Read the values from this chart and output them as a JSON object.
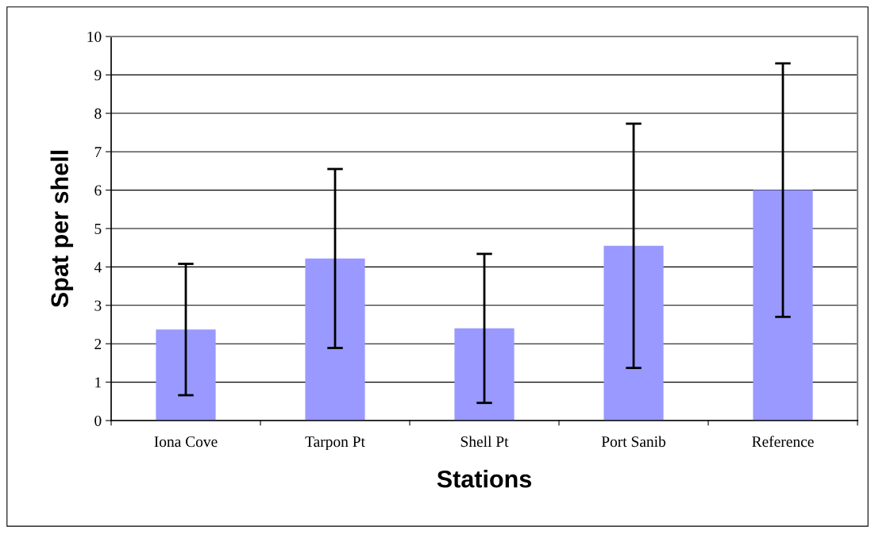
{
  "chart_data": {
    "type": "bar",
    "xlabel": "Stations",
    "ylabel": "Spat per shell",
    "categories": [
      "Iona Cove",
      "Tarpon Pt",
      "Shell Pt",
      "Port Sanib",
      "Reference"
    ],
    "values": [
      2.37,
      4.22,
      2.4,
      4.55,
      6.0
    ],
    "errors": [
      1.71,
      2.33,
      1.94,
      3.18,
      3.3
    ],
    "color": "#9999ff",
    "ylim": [
      0,
      10
    ],
    "yticks": [
      0,
      1,
      2,
      3,
      4,
      5,
      6,
      7,
      8,
      9,
      10
    ],
    "grid": "y"
  }
}
